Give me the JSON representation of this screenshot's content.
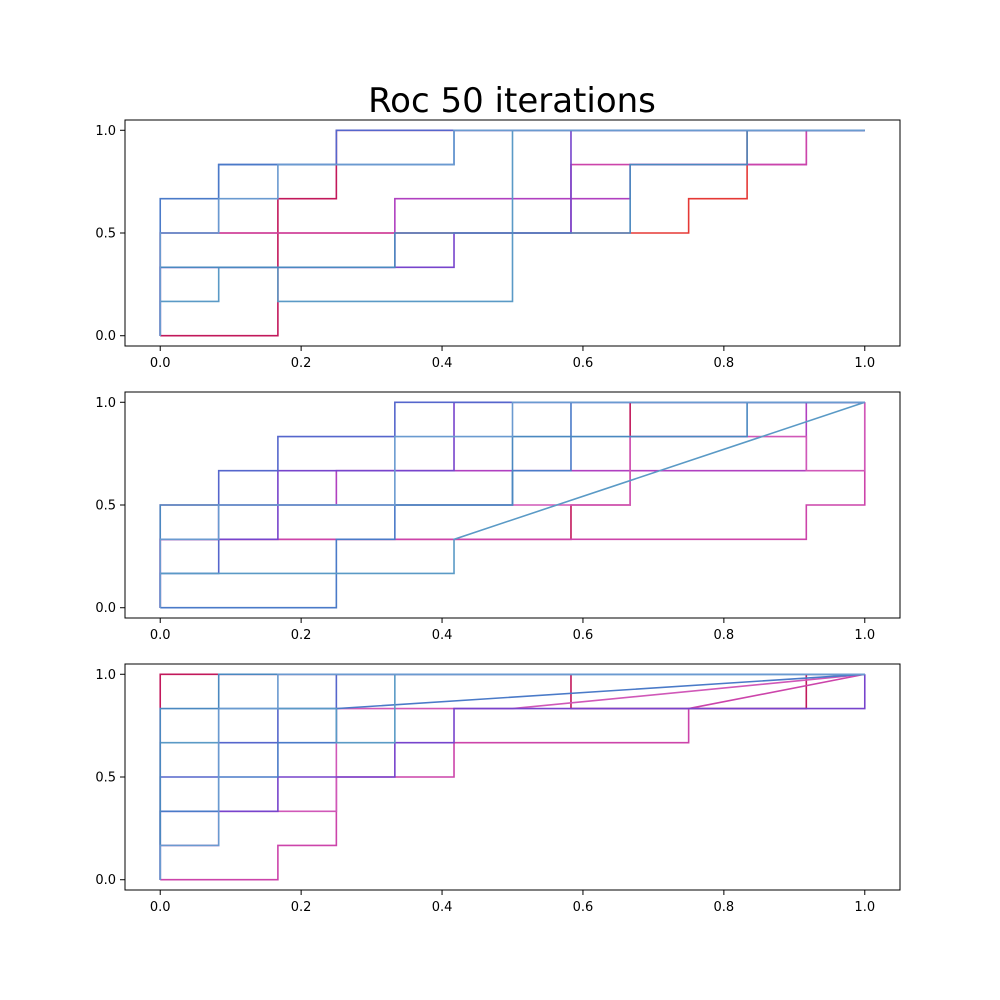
{
  "chart_data": {
    "type": "line",
    "title": "Roc 50 iterations",
    "xlim": [
      -0.05,
      1.05
    ],
    "ylim": [
      -0.05,
      1.05
    ],
    "grid": false,
    "subplots": [
      {
        "xticks": [
          "0.0",
          "0.2",
          "0.4",
          "0.6",
          "0.8",
          "1.0"
        ],
        "yticks": [
          "0.0",
          "0.5",
          "1.0"
        ],
        "series": [
          {
            "color": "#c2185b",
            "x": [
              0,
              0,
              0.167,
              0.167,
              0.25,
              0.25,
              0.25,
              0.25,
              1
            ],
            "y": [
              0,
              0,
              0,
              0.667,
              0.667,
              1,
              1,
              1,
              1
            ]
          },
          {
            "color": "#e53935",
            "x": [
              0,
              0,
              0.333,
              0.333,
              0.75,
              0.75,
              0.833,
              0.833,
              1
            ],
            "y": [
              0,
              0.5,
              0.5,
              0.5,
              0.5,
              0.667,
              0.667,
              1,
              1
            ]
          },
          {
            "color": "#b040c0",
            "x": [
              0,
              0,
              0.25,
              0.25,
              0.333,
              0.333,
              0.667,
              0.667,
              0.917,
              0.917,
              1
            ],
            "y": [
              0,
              0.333,
              0.333,
              0.333,
              0.333,
              0.667,
              0.667,
              0.833,
              0.833,
              1,
              1
            ]
          },
          {
            "color": "#cc44aa",
            "x": [
              0,
              0,
              0.5,
              0.5,
              0.583,
              0.583,
              0.917,
              0.917,
              1
            ],
            "y": [
              0,
              0.5,
              0.5,
              0.5,
              0.5,
              0.833,
              0.833,
              1,
              1
            ]
          },
          {
            "color": "#7744cc",
            "x": [
              0,
              0,
              0.333,
              0.333,
              0.417,
              0.417,
              0.583,
              0.583,
              1
            ],
            "y": [
              0,
              0.333,
              0.333,
              0.333,
              0.333,
              0.5,
              0.5,
              1,
              1
            ]
          },
          {
            "color": "#5566cc",
            "x": [
              0,
              0,
              0.083,
              0.083,
              0.167,
              0.167,
              0.25,
              0.25,
              0.333,
              0.333,
              1
            ],
            "y": [
              0,
              0.5,
              0.5,
              0.833,
              0.833,
              0.833,
              0.833,
              1,
              1,
              1,
              1
            ]
          },
          {
            "color": "#4a7ac8",
            "x": [
              0,
              0,
              0.083,
              0.083,
              0.417,
              0.417,
              0.5,
              0.5,
              1
            ],
            "y": [
              0,
              0.667,
              0.667,
              0.833,
              0.833,
              1,
              1,
              1,
              1
            ]
          },
          {
            "color": "#5a9ac6",
            "x": [
              0,
              0,
              0.083,
              0.083,
              0.167,
              0.167,
              0.5,
              0.5,
              0.5,
              0.5,
              1
            ],
            "y": [
              0,
              0.167,
              0.167,
              0.333,
              0.333,
              0.167,
              0.167,
              0.667,
              0.667,
              1,
              1
            ]
          },
          {
            "color": "#4a88c0",
            "x": [
              0,
              0,
              0.25,
              0.25,
              0.333,
              0.333,
              0.667,
              0.667,
              0.833,
              0.833,
              1
            ],
            "y": [
              0,
              0.333,
              0.333,
              0.333,
              0.333,
              0.5,
              0.5,
              0.833,
              0.833,
              1,
              1
            ]
          },
          {
            "color": "#6a9ad0",
            "x": [
              0,
              0,
              0.083,
              0.083,
              0.167,
              0.167,
              0.25,
              0.25,
              0.417,
              0.417,
              1
            ],
            "y": [
              0,
              0.5,
              0.5,
              0.667,
              0.667,
              0.833,
              0.833,
              0.833,
              0.833,
              1,
              1
            ]
          }
        ]
      },
      {
        "xticks": [
          "0.0",
          "0.2",
          "0.4",
          "0.6",
          "0.8",
          "1.0"
        ],
        "yticks": [
          "0.0",
          "0.5",
          "1.0"
        ],
        "series": [
          {
            "color": "#c2185b",
            "x": [
              0,
              0,
              0.083,
              0.083,
              0.583,
              0.583,
              0.667,
              0.667,
              1
            ],
            "y": [
              0,
              0.333,
              0.333,
              0.333,
              0.333,
              0.5,
              0.5,
              1,
              1
            ]
          },
          {
            "color": "#cc44aa",
            "x": [
              0,
              0,
              0.5,
              0.5,
              0.917,
              0.917,
              1,
              1
            ],
            "y": [
              0,
              0.333,
              0.333,
              0.333,
              0.333,
              0.5,
              0.5,
              1
            ]
          },
          {
            "color": "#b040c0",
            "x": [
              0,
              0,
              0.083,
              0.083,
              0.25,
              0.25,
              0.833,
              0.833,
              0.917,
              0.917,
              1
            ],
            "y": [
              0,
              0.333,
              0.333,
              0.5,
              0.5,
              0.667,
              0.667,
              0.667,
              0.667,
              1,
              1
            ]
          },
          {
            "color": "#d058b8",
            "x": [
              0,
              0,
              0.333,
              0.333,
              0.667,
              0.667,
              0.917,
              0.917,
              1,
              1
            ],
            "y": [
              0,
              0.5,
              0.5,
              0.5,
              0.5,
              0.833,
              0.833,
              0.667,
              0.667,
              1
            ]
          },
          {
            "color": "#7744cc",
            "x": [
              0,
              0,
              0.167,
              0.167,
              0.333,
              0.333,
              0.417,
              0.417,
              1
            ],
            "y": [
              0,
              0.333,
              0.333,
              0.667,
              0.667,
              0.667,
              0.667,
              1,
              1
            ]
          },
          {
            "color": "#5566cc",
            "x": [
              0,
              0,
              0.083,
              0.083,
              0.167,
              0.167,
              0.25,
              0.25,
              0.333,
              0.333,
              1
            ],
            "y": [
              0,
              0.167,
              0.167,
              0.667,
              0.667,
              0.833,
              0.833,
              0.833,
              0.833,
              1,
              1
            ]
          },
          {
            "color": "#4a7ac8",
            "x": [
              0,
              0,
              0.25,
              0.25,
              0.333,
              0.333,
              0.5,
              0.5,
              0.583,
              0.583,
              1
            ],
            "y": [
              0,
              0,
              0,
              0.333,
              0.333,
              0.5,
              0.5,
              0.667,
              0.667,
              1,
              1
            ]
          },
          {
            "color": "#5a9ac6",
            "x": [
              0,
              0,
              0.083,
              0.083,
              0.333,
              0.333,
              0.417,
              0.417,
              1
            ],
            "y": [
              0,
              0.167,
              0.167,
              0.167,
              0.167,
              0.167,
              0.167,
              0.333,
              1
            ]
          },
          {
            "color": "#4a88c0",
            "x": [
              0,
              0,
              0.167,
              0.167,
              0.5,
              0.5,
              0.833,
              0.833,
              1
            ],
            "y": [
              0,
              0.5,
              0.5,
              0.5,
              0.5,
              0.833,
              0.833,
              1,
              1
            ]
          },
          {
            "color": "#6a9ad0",
            "x": [
              0,
              0,
              0.083,
              0.083,
              0.333,
              0.333,
              0.5,
              0.5,
              1
            ],
            "y": [
              0,
              0.333,
              0.333,
              0.5,
              0.5,
              0.833,
              0.833,
              1,
              1
            ]
          }
        ]
      },
      {
        "xticks": [
          "0.0",
          "0.2",
          "0.4",
          "0.6",
          "0.8",
          "1.0"
        ],
        "yticks": [
          "0.0",
          "0.5",
          "1.0"
        ],
        "series": [
          {
            "color": "#c2185b",
            "x": [
              0,
              0,
              0.083,
              0.083,
              0.583,
              0.583,
              0.917,
              0.917,
              1
            ],
            "y": [
              0,
              1,
              1,
              1,
              1,
              0.833,
              0.833,
              1,
              1
            ]
          },
          {
            "color": "#cc44aa",
            "x": [
              0,
              0.167,
              0.167,
              0.25,
              0.25,
              0.417,
              0.417,
              0.75,
              0.75,
              1
            ],
            "y": [
              0,
              0,
              0.167,
              0.167,
              0.5,
              0.5,
              0.667,
              0.667,
              0.833,
              1
            ]
          },
          {
            "color": "#d058b8",
            "x": [
              0,
              0,
              0.083,
              0.083,
              0.25,
              0.25,
              0.5,
              0.5,
              1
            ],
            "y": [
              0,
              0.167,
              0.167,
              0.333,
              0.333,
              0.833,
              0.833,
              0.833,
              1
            ]
          },
          {
            "color": "#7744cc",
            "x": [
              0,
              0,
              0.167,
              0.167,
              0.333,
              0.333,
              0.417,
              0.417,
              1,
              1
            ],
            "y": [
              0,
              0.333,
              0.333,
              0.5,
              0.5,
              0.667,
              0.667,
              0.833,
              0.833,
              1
            ]
          },
          {
            "color": "#5566cc",
            "x": [
              0,
              0,
              0.083,
              0.083,
              0.167,
              0.167,
              0.25,
              0.25,
              1
            ],
            "y": [
              0,
              0.5,
              0.5,
              0.667,
              0.667,
              0.833,
              0.833,
              1,
              1
            ]
          },
          {
            "color": "#4a7ac8",
            "x": [
              0,
              0,
              0.083,
              0.083,
              0.167,
              0.167,
              0.25,
              0.25,
              1
            ],
            "y": [
              0,
              0.333,
              0.333,
              0.5,
              0.5,
              0.667,
              0.667,
              0.833,
              1
            ]
          },
          {
            "color": "#5a9ac6",
            "x": [
              0,
              0,
              0.083,
              0.083,
              0.25,
              0.25,
              0.333,
              0.333,
              1
            ],
            "y": [
              0,
              0.667,
              0.667,
              0.833,
              0.833,
              0.667,
              0.667,
              1,
              1
            ]
          },
          {
            "color": "#4a88c0",
            "x": [
              0,
              0,
              0.083,
              0.083,
              0.167,
              0.167,
              0.333,
              0.333,
              1
            ],
            "y": [
              0,
              0.833,
              0.833,
              1,
              1,
              1,
              1,
              1,
              1
            ]
          },
          {
            "color": "#6a9ad0",
            "x": [
              0,
              0,
              0.083,
              0.083,
              0.083,
              0.167,
              0.167,
              0.417,
              0.417,
              1
            ],
            "y": [
              0,
              0.167,
              0.167,
              0.833,
              0.833,
              0.833,
              1,
              1,
              1,
              1
            ]
          }
        ]
      }
    ]
  }
}
